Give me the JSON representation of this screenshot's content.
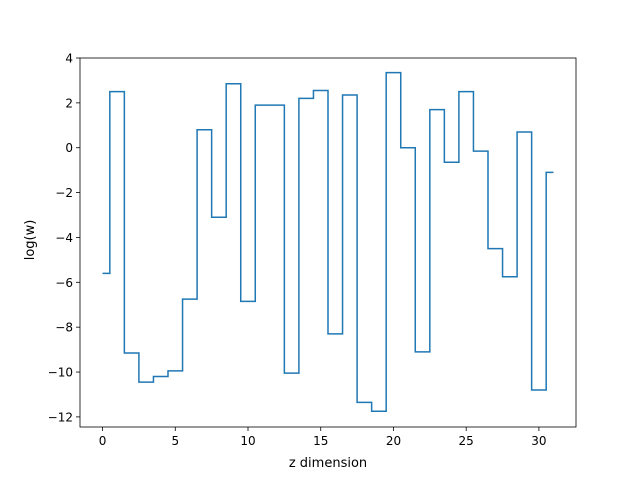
{
  "chart_data": {
    "type": "line",
    "drawstyle": "steps-mid",
    "title": "",
    "xlabel": "z dimension",
    "ylabel": "log(w)",
    "xlim": [
      -1.55,
      32.55
    ],
    "ylim": [
      -12.45,
      4.0
    ],
    "xticks": [
      0,
      5,
      10,
      15,
      20,
      25,
      30
    ],
    "yticks": [
      -12,
      -10,
      -8,
      -6,
      -4,
      -2,
      0,
      2,
      4
    ],
    "grid": false,
    "legend": "none",
    "series": [
      {
        "color": "#1f77b4",
        "x": [
          0,
          1,
          2,
          3,
          4,
          5,
          6,
          7,
          8,
          9,
          10,
          11,
          12,
          13,
          14,
          15,
          16,
          17,
          18,
          19,
          20,
          21,
          22,
          23,
          24,
          25,
          26,
          27,
          28,
          29,
          30,
          31
        ],
        "values": [
          -5.6,
          2.5,
          -9.15,
          -10.45,
          -10.2,
          -9.95,
          -6.75,
          0.8,
          -3.1,
          2.85,
          -6.85,
          1.9,
          1.9,
          -10.05,
          2.2,
          2.55,
          -8.3,
          2.35,
          -11.35,
          -11.75,
          3.35,
          0.0,
          -9.1,
          1.7,
          -0.65,
          2.5,
          -0.15,
          -4.5,
          -5.75,
          0.7,
          -10.8,
          -1.1
        ]
      }
    ]
  }
}
